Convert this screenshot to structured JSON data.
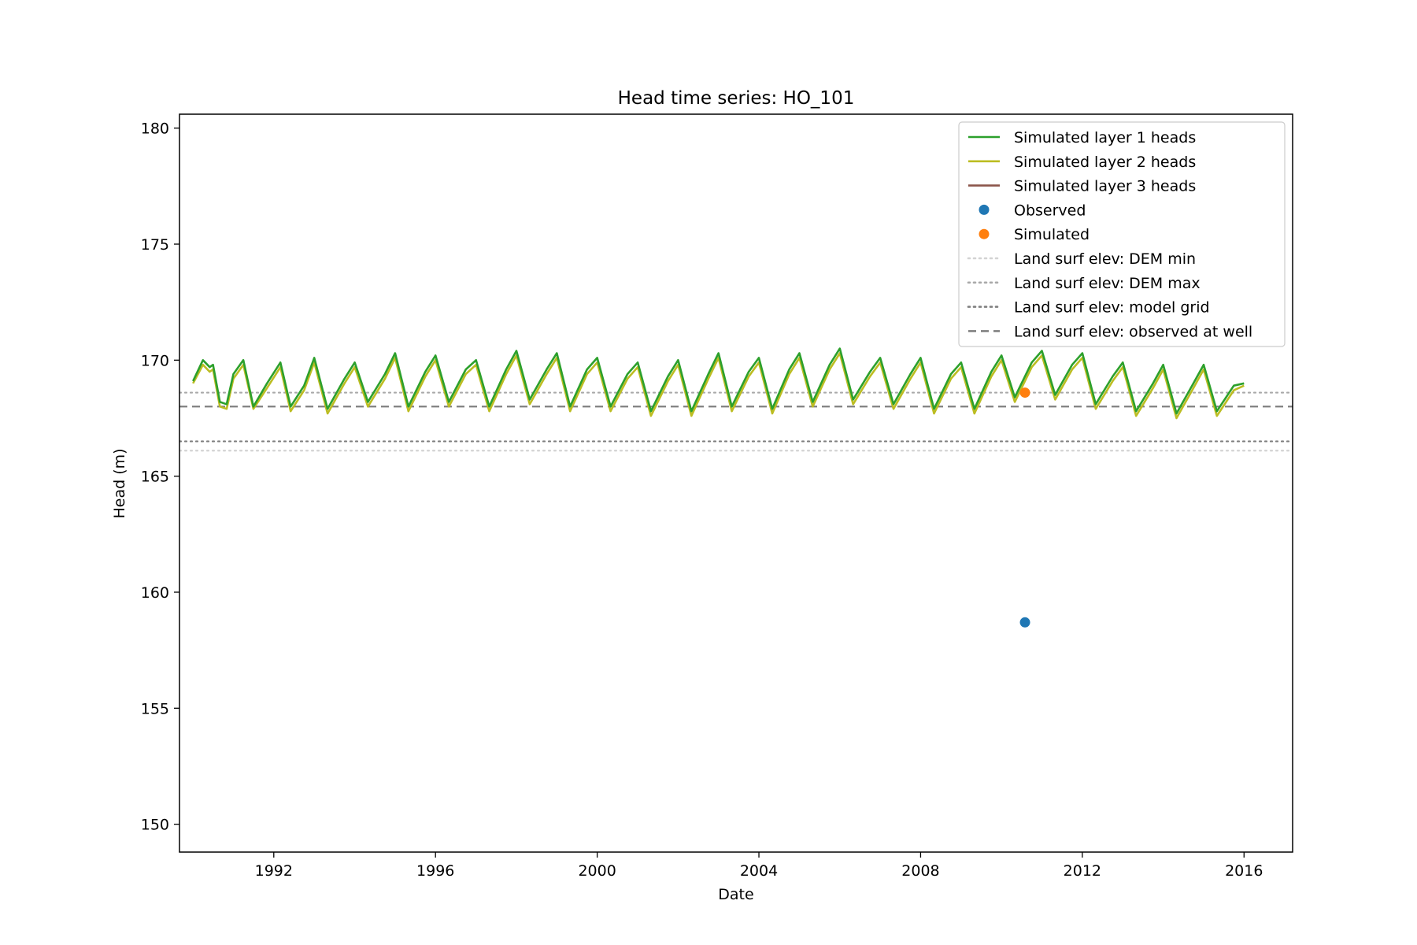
{
  "chart_data": {
    "type": "line",
    "title": "Head time series: HO_101",
    "xlabel": "Date",
    "ylabel": "Head (m)",
    "xlim": [
      "1989-09-01",
      "2017-03-15"
    ],
    "ylim": [
      148.8,
      180.6
    ],
    "x_ticks": [
      "1992",
      "1996",
      "2000",
      "2004",
      "2008",
      "2012",
      "2016"
    ],
    "y_ticks": [
      150,
      155,
      160,
      165,
      170,
      175,
      180
    ],
    "grid": false,
    "legend_position": "top-right",
    "series": [
      {
        "name": "Simulated layer 1 heads",
        "kind": "line",
        "color": "#2ca02c",
        "x": [
          "1990-01-01",
          "1990-04-01",
          "1990-06-01",
          "1990-07-01",
          "1990-09-01",
          "1990-11-01",
          "1991-01-01",
          "1991-04-01",
          "1991-07-01",
          "1991-11-01",
          "1992-03-01",
          "1992-06-01",
          "1992-10-01",
          "1993-01-01",
          "1993-05-01",
          "1993-10-01",
          "1994-01-01",
          "1994-05-01",
          "1994-10-01",
          "1995-01-01",
          "1995-05-01",
          "1995-10-01",
          "1996-01-01",
          "1996-05-01",
          "1996-10-01",
          "1997-01-01",
          "1997-05-01",
          "1997-10-01",
          "1998-01-01",
          "1998-05-01",
          "1998-10-01",
          "1999-01-01",
          "1999-05-01",
          "1999-10-01",
          "2000-01-01",
          "2000-05-01",
          "2000-10-01",
          "2001-01-01",
          "2001-05-01",
          "2001-10-01",
          "2002-01-01",
          "2002-05-01",
          "2002-10-01",
          "2003-01-01",
          "2003-05-01",
          "2003-10-01",
          "2004-01-01",
          "2004-05-01",
          "2004-10-01",
          "2005-01-01",
          "2005-05-01",
          "2005-10-01",
          "2006-01-01",
          "2006-05-01",
          "2006-10-01",
          "2007-01-01",
          "2007-05-01",
          "2007-10-01",
          "2008-01-01",
          "2008-05-01",
          "2008-10-01",
          "2009-01-01",
          "2009-05-01",
          "2009-10-01",
          "2010-01-01",
          "2010-05-01",
          "2010-10-01",
          "2011-01-01",
          "2011-05-01",
          "2011-10-01",
          "2012-01-01",
          "2012-05-01",
          "2012-10-01",
          "2013-01-01",
          "2013-05-01",
          "2013-10-01",
          "2014-01-01",
          "2014-05-01",
          "2014-10-01",
          "2015-01-01",
          "2015-05-01",
          "2015-10-01",
          "2016-01-01"
        ],
        "y": [
          169.1,
          170.0,
          169.7,
          169.8,
          168.2,
          168.1,
          169.4,
          170.0,
          168.0,
          169.0,
          169.9,
          168.0,
          168.9,
          170.1,
          167.9,
          169.2,
          169.9,
          168.2,
          169.4,
          170.3,
          168.0,
          169.5,
          170.2,
          168.2,
          169.6,
          170.0,
          168.0,
          169.6,
          170.4,
          168.3,
          169.6,
          170.3,
          168.0,
          169.6,
          170.1,
          168.0,
          169.4,
          169.9,
          167.8,
          169.3,
          170.0,
          167.8,
          169.4,
          170.3,
          168.0,
          169.5,
          170.1,
          167.9,
          169.6,
          170.3,
          168.2,
          169.8,
          170.5,
          168.3,
          169.5,
          170.1,
          168.1,
          169.4,
          170.1,
          167.9,
          169.4,
          169.9,
          167.9,
          169.5,
          170.2,
          168.4,
          169.9,
          170.4,
          168.5,
          169.8,
          170.3,
          168.1,
          169.3,
          169.9,
          167.8,
          169.0,
          169.8,
          167.7,
          169.0,
          169.8,
          167.8,
          168.9,
          169.0
        ]
      },
      {
        "name": "Simulated layer 2 heads",
        "kind": "line",
        "color": "#bcbd22",
        "x": [
          "1990-01-01",
          "1990-04-01",
          "1990-06-01",
          "1990-07-01",
          "1990-09-01",
          "1990-11-01",
          "1991-01-01",
          "1991-04-01",
          "1991-07-01",
          "1991-11-01",
          "1992-03-01",
          "1992-06-01",
          "1992-10-01",
          "1993-01-01",
          "1993-05-01",
          "1993-10-01",
          "1994-01-01",
          "1994-05-01",
          "1994-10-01",
          "1995-01-01",
          "1995-05-01",
          "1995-10-01",
          "1996-01-01",
          "1996-05-01",
          "1996-10-01",
          "1997-01-01",
          "1997-05-01",
          "1997-10-01",
          "1998-01-01",
          "1998-05-01",
          "1998-10-01",
          "1999-01-01",
          "1999-05-01",
          "1999-10-01",
          "2000-01-01",
          "2000-05-01",
          "2000-10-01",
          "2001-01-01",
          "2001-05-01",
          "2001-10-01",
          "2002-01-01",
          "2002-05-01",
          "2002-10-01",
          "2003-01-01",
          "2003-05-01",
          "2003-10-01",
          "2004-01-01",
          "2004-05-01",
          "2004-10-01",
          "2005-01-01",
          "2005-05-01",
          "2005-10-01",
          "2006-01-01",
          "2006-05-01",
          "2006-10-01",
          "2007-01-01",
          "2007-05-01",
          "2007-10-01",
          "2008-01-01",
          "2008-05-01",
          "2008-10-01",
          "2009-01-01",
          "2009-05-01",
          "2009-10-01",
          "2010-01-01",
          "2010-05-01",
          "2010-10-01",
          "2011-01-01",
          "2011-05-01",
          "2011-10-01",
          "2012-01-01",
          "2012-05-01",
          "2012-10-01",
          "2013-01-01",
          "2013-05-01",
          "2013-10-01",
          "2014-01-01",
          "2014-05-01",
          "2014-10-01",
          "2015-01-01",
          "2015-05-01",
          "2015-10-01",
          "2016-01-01"
        ],
        "y": [
          169.0,
          169.8,
          169.5,
          169.6,
          168.0,
          167.9,
          169.2,
          169.8,
          167.9,
          168.8,
          169.7,
          167.8,
          168.7,
          169.9,
          167.7,
          169.0,
          169.7,
          168.0,
          169.2,
          170.1,
          167.8,
          169.3,
          170.0,
          168.0,
          169.4,
          169.8,
          167.8,
          169.4,
          170.2,
          168.1,
          169.4,
          170.1,
          167.8,
          169.4,
          169.9,
          167.8,
          169.2,
          169.7,
          167.6,
          169.1,
          169.8,
          167.6,
          169.2,
          170.1,
          167.8,
          169.3,
          169.9,
          167.7,
          169.4,
          170.1,
          168.0,
          169.6,
          170.3,
          168.1,
          169.3,
          169.9,
          167.9,
          169.2,
          169.9,
          167.7,
          169.2,
          169.7,
          167.7,
          169.3,
          170.0,
          168.2,
          169.7,
          170.2,
          168.3,
          169.6,
          170.1,
          167.9,
          169.1,
          169.7,
          167.6,
          168.8,
          169.6,
          167.5,
          168.8,
          169.6,
          167.6,
          168.7,
          168.9
        ]
      },
      {
        "name": "Simulated layer 3 heads",
        "kind": "line",
        "color": "#8c564b",
        "x": [],
        "y": []
      },
      {
        "name": "Observed",
        "kind": "scatter",
        "color": "#1f77b4",
        "x": [
          "2010-08-01"
        ],
        "y": [
          158.7
        ]
      },
      {
        "name": "Simulated",
        "kind": "scatter",
        "color": "#ff7f0e",
        "x": [
          "2010-08-01"
        ],
        "y": [
          168.6
        ]
      },
      {
        "name": "Land surf elev: DEM min",
        "kind": "hline",
        "style": "dotted",
        "color": "#d3d3d3",
        "y": 166.1
      },
      {
        "name": "Land surf elev: DEM max",
        "kind": "hline",
        "style": "dotted",
        "color": "#a9a9a9",
        "y": 168.6
      },
      {
        "name": "Land surf elev: model grid",
        "kind": "hline",
        "style": "dotted",
        "color": "#808080",
        "y": 166.5
      },
      {
        "name": "Land surf elev: observed at well",
        "kind": "hline",
        "style": "dashed",
        "color": "#808080",
        "y": 168.0
      }
    ]
  }
}
